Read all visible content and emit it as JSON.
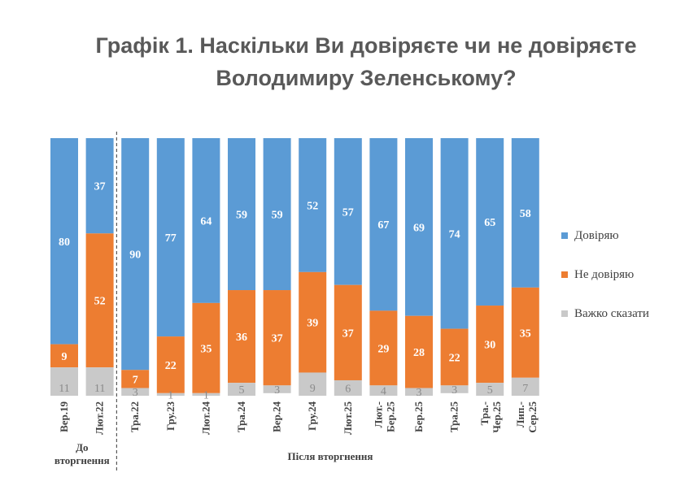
{
  "chart_data": {
    "type": "bar",
    "stacked": true,
    "title_lines": [
      "Графік 1. Наскільки Ви довіряєте чи не довіряєте",
      "Володимиру Зеленському?"
    ],
    "categories": [
      "Вер.19",
      "Лют.22",
      "Тра.22",
      "Гру.23",
      "Лют.24",
      "Тра.24",
      "Вер.24",
      "Гру.24",
      "Лют.25",
      "Лют.-Бер.25",
      "Бер.25",
      "Тра.25",
      "Тра.-Чер.25",
      "Лип.-Сер.25"
    ],
    "category_lines": [
      [
        "Вер.19"
      ],
      [
        "Лют.22"
      ],
      [
        "Тра.22"
      ],
      [
        "Гру.23"
      ],
      [
        "Лют.24"
      ],
      [
        "Тра.24"
      ],
      [
        "Вер.24"
      ],
      [
        "Гру.24"
      ],
      [
        "Лют.25"
      ],
      [
        "Лют.-",
        "Бер.25"
      ],
      [
        "Бер.25"
      ],
      [
        "Тра.25"
      ],
      [
        "Тра.-",
        "Чер.25"
      ],
      [
        "Лип.-",
        "Сер.25"
      ]
    ],
    "series": [
      {
        "name": "Довіряю",
        "color": "#5b9bd5",
        "values": [
          80,
          37,
          90,
          77,
          64,
          59,
          59,
          52,
          57,
          67,
          69,
          74,
          65,
          58
        ]
      },
      {
        "name": "Не довіряю",
        "color": "#ed7d31",
        "values": [
          9,
          52,
          7,
          22,
          35,
          36,
          37,
          39,
          37,
          29,
          28,
          22,
          30,
          35
        ]
      },
      {
        "name": "Важко сказати",
        "color": "#c9c9c9",
        "values": [
          11,
          11,
          3,
          1,
          1,
          5,
          3,
          9,
          6,
          4,
          3,
          3,
          5,
          7
        ]
      }
    ],
    "ylim": [
      0,
      100
    ],
    "groups": [
      {
        "label_lines": [
          "До",
          "вторгнення"
        ],
        "start": 0,
        "end": 1
      },
      {
        "label_lines": [
          "Після вторгнення"
        ],
        "start": 2,
        "end": 13
      }
    ],
    "legend": [
      "Довіряю",
      "Не довіряю",
      "Важко сказати"
    ],
    "legend_position": "right"
  }
}
